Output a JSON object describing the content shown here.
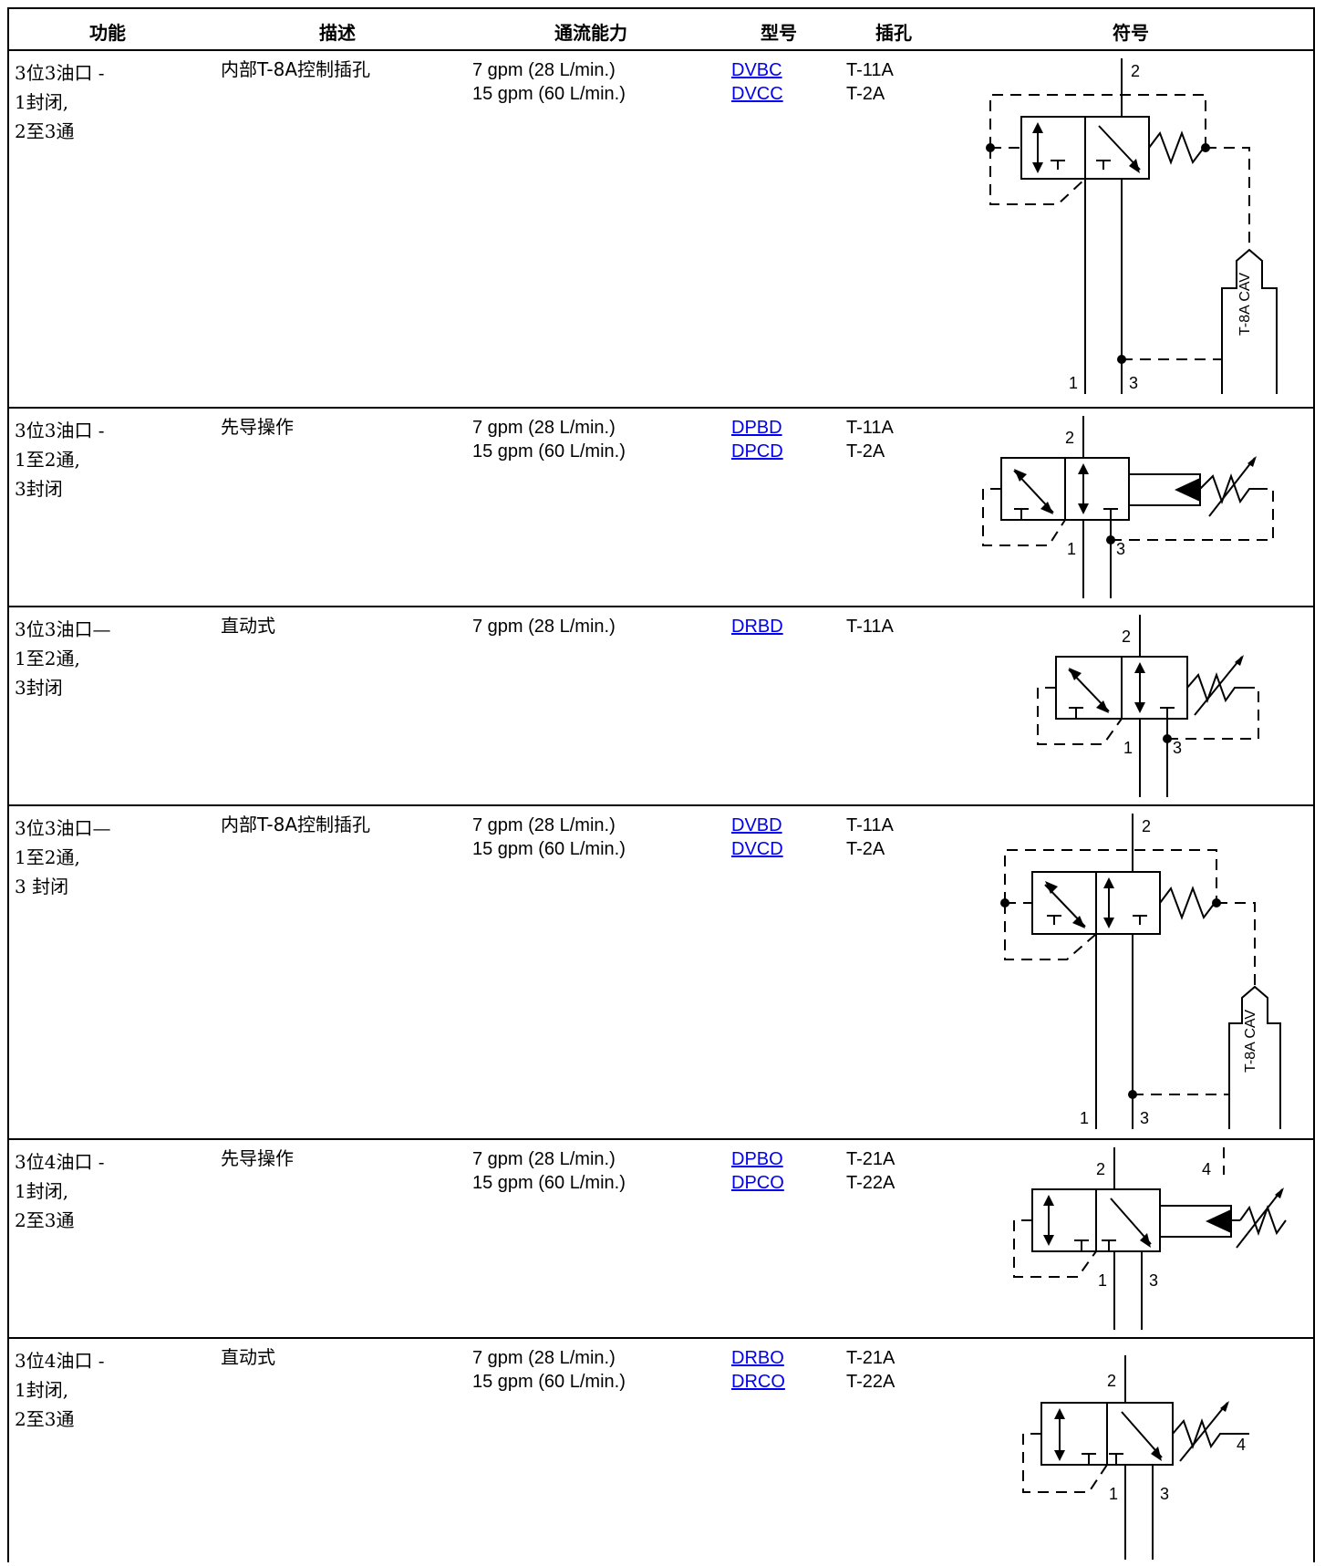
{
  "header": {
    "function": "功能",
    "description": "描述",
    "flow": "通流能力",
    "model": "型号",
    "cavity": "插孔",
    "symbol": "符号"
  },
  "rows": [
    {
      "function": [
        "3位3油口 -",
        "1封闭,",
        "2至3通"
      ],
      "description": "内部T-8A控制插孔",
      "flow": [
        "7 gpm (28 L/min.)",
        "15 gpm (60 L/min.)"
      ],
      "models": [
        "DVBC",
        "DVCC"
      ],
      "cavities": [
        "T-11A",
        "T-2A"
      ],
      "symbol": {
        "type": "internal-cav-vent",
        "port_labels": [
          "2",
          "1",
          "3"
        ],
        "cav_label": "T-8A CAV"
      }
    },
    {
      "function": [
        "3位3油口 -",
        "1至2通,",
        "3封闭"
      ],
      "description": "先导操作",
      "flow": [
        "7 gpm (28 L/min.)",
        "15 gpm (60 L/min.)"
      ],
      "models": [
        "DPBD",
        "DPCD"
      ],
      "cavities": [
        "T-11A",
        "T-2A"
      ],
      "symbol": {
        "type": "pilot-operated",
        "port_labels": [
          "2",
          "1",
          "3"
        ]
      }
    },
    {
      "function": [
        "3位3油口—",
        "1至2通,",
        "3封闭"
      ],
      "description": "直动式",
      "flow": [
        "7 gpm (28 L/min.)"
      ],
      "models": [
        "DRBD"
      ],
      "cavities": [
        "T-11A"
      ],
      "symbol": {
        "type": "direct-acting",
        "port_labels": [
          "2",
          "1",
          "3"
        ]
      }
    },
    {
      "function": [
        "3位3油口—",
        "1至2通,",
        "3 封闭"
      ],
      "description": "内部T-8A控制插孔",
      "flow": [
        "7 gpm (28 L/min.)",
        "15 gpm (60 L/min.)"
      ],
      "models": [
        "DVBD",
        "DVCD"
      ],
      "cavities": [
        "T-11A",
        "T-2A"
      ],
      "symbol": {
        "type": "internal-cav-vent",
        "port_labels": [
          "2",
          "1",
          "3"
        ],
        "cav_label": "T-8A CAV"
      }
    },
    {
      "function": [
        "3位4油口 -",
        "1封闭,",
        "2至3通"
      ],
      "description": "先导操作",
      "flow": [
        "7 gpm (28 L/min.)",
        "15 gpm (60 L/min.)"
      ],
      "models": [
        "DPBO",
        "DPCO"
      ],
      "cavities": [
        "T-21A",
        "T-22A"
      ],
      "symbol": {
        "type": "pilot-operated-4port",
        "port_labels": [
          "2",
          "4",
          "1",
          "3"
        ]
      }
    },
    {
      "function": [
        "3位4油口 -",
        "1封闭,",
        "2至3通"
      ],
      "description": "直动式",
      "flow": [
        "7 gpm (28 L/min.)",
        "15 gpm (60 L/min.)"
      ],
      "models": [
        "DRBO",
        "DRCO"
      ],
      "cavities": [
        "T-21A",
        "T-22A"
      ],
      "symbol": {
        "type": "direct-acting-4port",
        "port_labels": [
          "2",
          "1",
          "3",
          "4"
        ]
      }
    }
  ]
}
